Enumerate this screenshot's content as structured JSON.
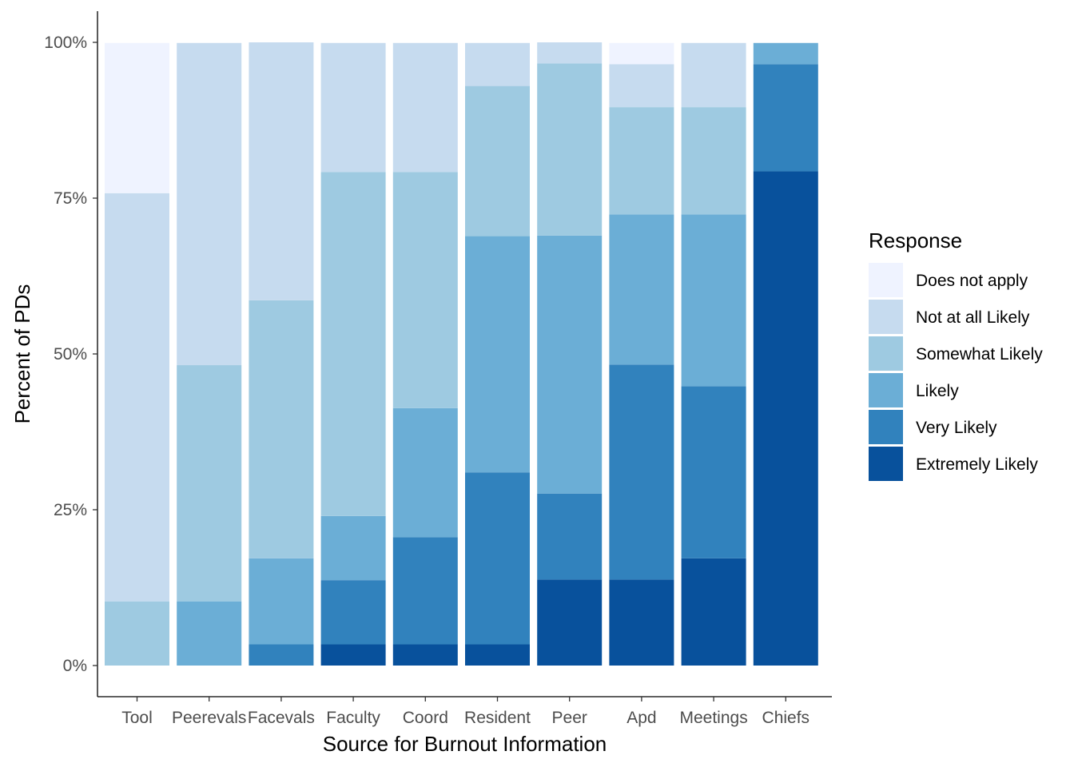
{
  "chart_data": {
    "type": "bar",
    "stacked": true,
    "normalized": true,
    "xlabel": "Source for Burnout Information",
    "ylabel": "Percent of PDs",
    "ylim": [
      0,
      100
    ],
    "yticks": [
      0,
      25,
      50,
      75,
      100
    ],
    "ytick_labels": [
      "0%",
      "25%",
      "50%",
      "75%",
      "100%"
    ],
    "grid": false,
    "legend": {
      "title": "Response",
      "position": "right"
    },
    "categories": [
      "Tool",
      "Peerevals",
      "Facevals",
      "Faculty",
      "Coord",
      "Resident",
      "Peer",
      "Apd",
      "Meetings",
      "Chiefs"
    ],
    "series": [
      {
        "name": "Does not apply",
        "color": "#eff3ff",
        "values": [
          24.1,
          0,
          0,
          0,
          0,
          0,
          0,
          3.4,
          0,
          0
        ]
      },
      {
        "name": "Not at all Likely",
        "color": "#c6dbef",
        "values": [
          65.5,
          51.7,
          41.4,
          20.7,
          20.7,
          6.9,
          3.4,
          6.9,
          10.3,
          0
        ]
      },
      {
        "name": "Somewhat Likely",
        "color": "#9ecae1",
        "values": [
          10.3,
          37.9,
          41.4,
          55.2,
          37.9,
          24.1,
          27.6,
          17.2,
          17.2,
          0
        ]
      },
      {
        "name": "Likely",
        "color": "#6baed6",
        "values": [
          0,
          10.3,
          13.8,
          10.3,
          20.7,
          37.9,
          41.4,
          24.1,
          27.6,
          3.4
        ]
      },
      {
        "name": "Very Likely",
        "color": "#3182bd",
        "values": [
          0,
          0,
          3.4,
          10.3,
          17.2,
          27.6,
          13.8,
          34.5,
          27.6,
          17.2
        ]
      },
      {
        "name": "Extremely Likely",
        "color": "#08519c",
        "values": [
          0,
          0,
          0,
          3.4,
          3.4,
          3.4,
          13.8,
          13.8,
          17.2,
          79.3
        ]
      }
    ]
  }
}
